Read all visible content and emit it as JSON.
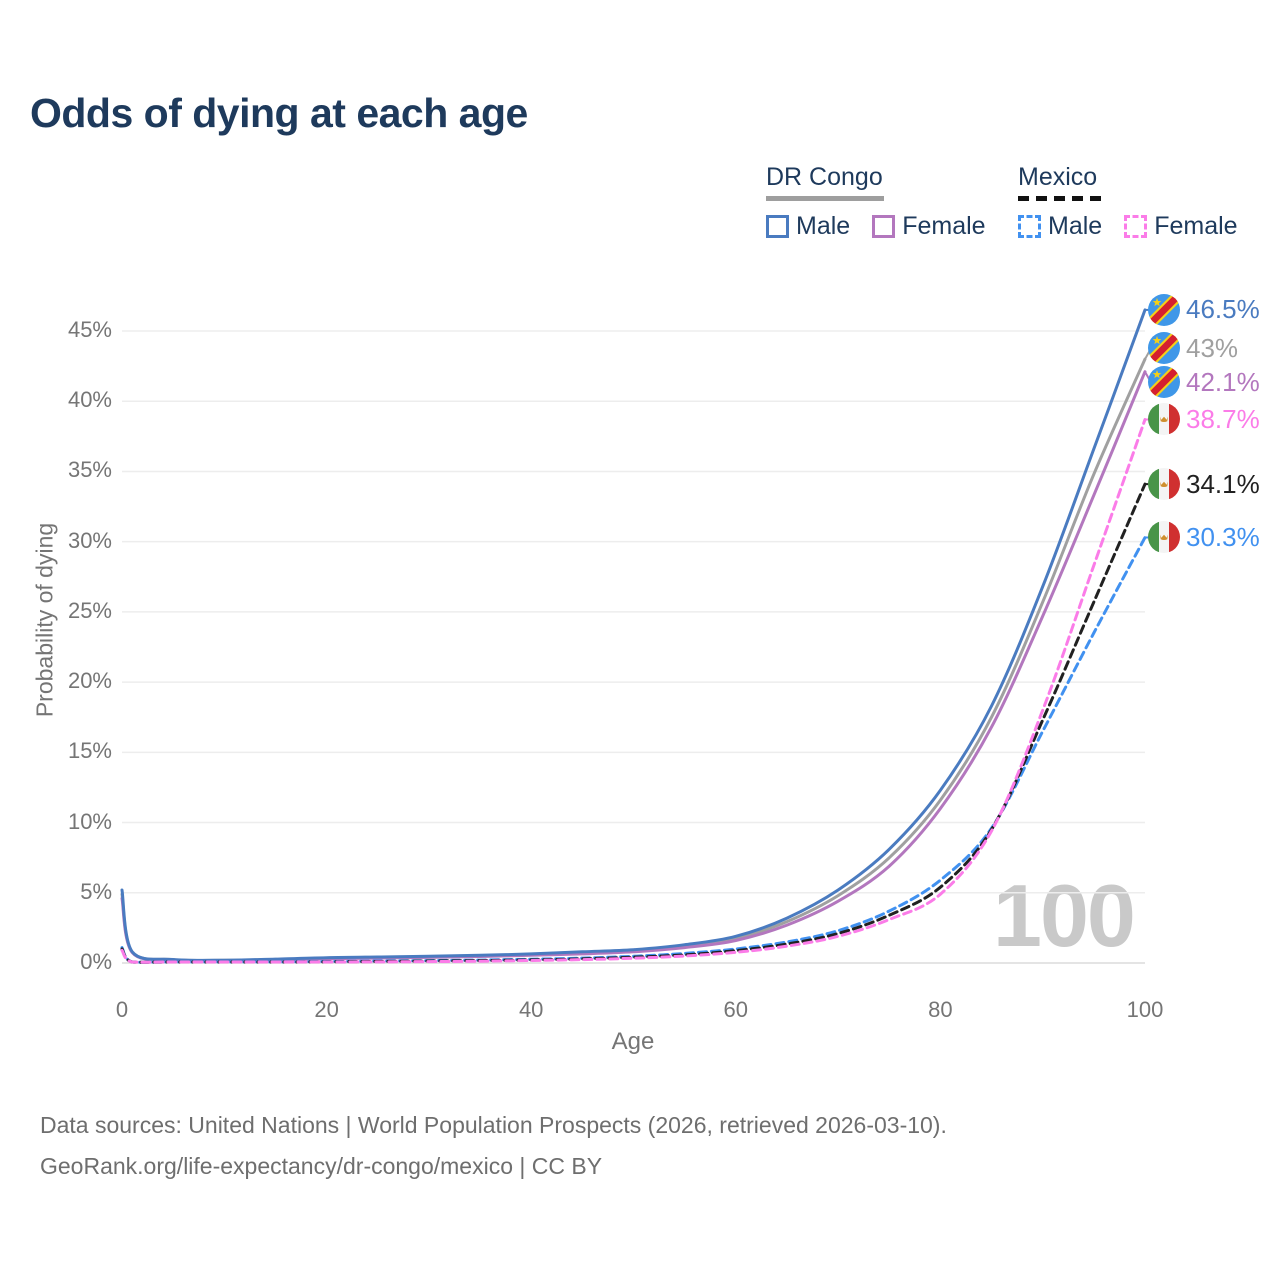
{
  "title": "Odds of dying at each age",
  "legend": {
    "groups": [
      {
        "name": "DR Congo",
        "line_style": "solid",
        "rule_color": "#9e9e9e",
        "items": [
          {
            "label": "Male",
            "color": "#4a7bc0"
          },
          {
            "label": "Female",
            "color": "#b377be"
          }
        ]
      },
      {
        "name": "Mexico",
        "line_style": "dashed",
        "rule_color": "#111111",
        "items": [
          {
            "label": "Male",
            "color": "#4191f0"
          },
          {
            "label": "Female",
            "color": "#fb7ce8"
          }
        ]
      }
    ]
  },
  "axes": {
    "y_label": "Probability of dying",
    "x_label": "Age",
    "y_tick_values": [
      0,
      5,
      10,
      15,
      20,
      25,
      30,
      35,
      40,
      45
    ],
    "y_tick_labels": [
      "0%",
      "5%",
      "10%",
      "15%",
      "20%",
      "25%",
      "30%",
      "35%",
      "40%",
      "45%"
    ],
    "x_tick_values": [
      0,
      20,
      40,
      60,
      80,
      100
    ],
    "y_max_pct": 45,
    "x_range": [
      0,
      100
    ]
  },
  "watermark": "100",
  "chart_data": {
    "type": "line",
    "title": "Odds of dying at each age",
    "xlabel": "Age",
    "ylabel": "Probability of dying",
    "x_range": [
      0,
      100
    ],
    "ylim_pct": [
      0,
      47
    ],
    "grid": "horizontal",
    "x": [
      0,
      1,
      5,
      10,
      15,
      20,
      25,
      30,
      35,
      40,
      45,
      50,
      55,
      60,
      65,
      70,
      75,
      80,
      85,
      90,
      95,
      100
    ],
    "series": [
      {
        "name": "DR Congo Male",
        "country": "DR Congo",
        "sex": "male",
        "flag": "cd",
        "color": "#4a7bc0",
        "dashed": false,
        "end_label": "46.5%",
        "values": [
          5.2,
          0.8,
          0.25,
          0.2,
          0.28,
          0.38,
          0.43,
          0.48,
          0.55,
          0.65,
          0.8,
          0.95,
          1.3,
          1.9,
          3.2,
          5.2,
          8.1,
          12.3,
          18.3,
          26.8,
          36.6,
          46.5
        ]
      },
      {
        "name": "DR Congo Both sexes",
        "country": "DR Congo",
        "sex": "both",
        "flag": "cd",
        "color": "#a0a0a0",
        "dashed": false,
        "end_label": "43%",
        "values": [
          4.9,
          0.78,
          0.24,
          0.19,
          0.25,
          0.34,
          0.39,
          0.44,
          0.5,
          0.6,
          0.72,
          0.88,
          1.2,
          1.75,
          2.95,
          4.8,
          7.5,
          11.6,
          17.5,
          25.7,
          34.8,
          43.0
        ]
      },
      {
        "name": "DR Congo Female",
        "country": "DR Congo",
        "sex": "female",
        "flag": "cd",
        "color": "#b377be",
        "dashed": false,
        "end_label": "42.1%",
        "values": [
          4.6,
          0.75,
          0.22,
          0.18,
          0.22,
          0.3,
          0.35,
          0.4,
          0.46,
          0.55,
          0.65,
          0.8,
          1.1,
          1.6,
          2.7,
          4.4,
          6.9,
          11.0,
          16.8,
          24.7,
          33.3,
          42.1
        ]
      },
      {
        "name": "Mexico Female",
        "country": "Mexico",
        "sex": "female",
        "flag": "mx",
        "color": "#fb7ce8",
        "dashed": true,
        "end_label": "38.7%",
        "values": [
          0.9,
          0.05,
          0.02,
          0.02,
          0.04,
          0.06,
          0.08,
          0.1,
          0.13,
          0.18,
          0.24,
          0.34,
          0.5,
          0.76,
          1.2,
          1.9,
          3.1,
          4.9,
          9.4,
          18.0,
          28.3,
          38.7
        ]
      },
      {
        "name": "Mexico Both sexes",
        "country": "Mexico",
        "sex": "both",
        "flag": "mx",
        "color": "#212121",
        "dashed": true,
        "end_label": "34.1%",
        "values": [
          1.0,
          0.055,
          0.025,
          0.025,
          0.055,
          0.085,
          0.11,
          0.14,
          0.17,
          0.22,
          0.29,
          0.41,
          0.58,
          0.88,
          1.35,
          2.1,
          3.4,
          5.4,
          9.5,
          17.3,
          25.7,
          34.1
        ]
      },
      {
        "name": "Mexico Male",
        "country": "Mexico",
        "sex": "male",
        "flag": "mx",
        "color": "#4191f0",
        "dashed": true,
        "end_label": "30.3%",
        "values": [
          1.1,
          0.06,
          0.03,
          0.03,
          0.07,
          0.11,
          0.14,
          0.17,
          0.21,
          0.27,
          0.35,
          0.48,
          0.68,
          1.0,
          1.5,
          2.3,
          3.7,
          5.9,
          9.6,
          16.5,
          23.5,
          30.3
        ]
      }
    ],
    "legend_position": "top-right"
  },
  "source_lines": {
    "line1": "Data sources: United Nations | World Population Prospects (2026, retrieved 2026-03-10).",
    "line2": "GeoRank.org/life-expectancy/dr-congo/mexico | CC BY"
  }
}
